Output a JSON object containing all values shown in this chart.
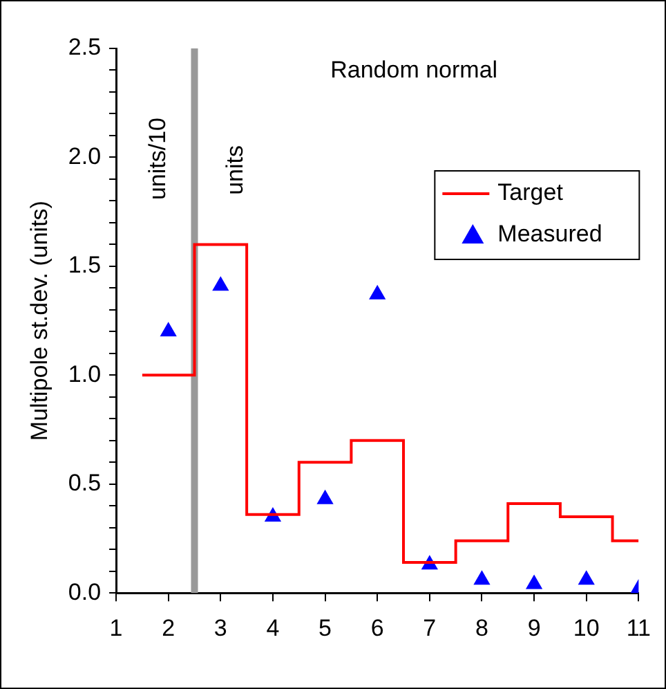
{
  "chart_data": {
    "type": "scatter",
    "title": "Random normal",
    "ylabel": "Multipole st.dev. (units)",
    "annotations": [
      "units/10",
      "units"
    ],
    "xlim": [
      1,
      11
    ],
    "xticks": [
      1,
      2,
      3,
      4,
      5,
      6,
      7,
      8,
      9,
      10,
      11
    ],
    "ylim": [
      0,
      2.5
    ],
    "yticks": [
      {
        "value": 0,
        "label": "0.0"
      },
      {
        "value": 0.1,
        "label": null
      },
      {
        "value": 0.2,
        "label": null
      },
      {
        "value": 0.3,
        "label": null
      },
      {
        "value": 0.4,
        "label": null
      },
      {
        "value": 0.5,
        "label": "0.5"
      },
      {
        "value": 0.6,
        "label": null
      },
      {
        "value": 0.7,
        "label": null
      },
      {
        "value": 0.8,
        "label": null
      },
      {
        "value": 0.9,
        "label": null
      },
      {
        "value": 1,
        "label": "1.0"
      },
      {
        "value": 1.1,
        "label": null
      },
      {
        "value": 1.2,
        "label": null
      },
      {
        "value": 1.3,
        "label": null
      },
      {
        "value": 1.4,
        "label": null
      },
      {
        "value": 1.5,
        "label": "1.5"
      },
      {
        "value": 1.6,
        "label": null
      },
      {
        "value": 1.7,
        "label": null
      },
      {
        "value": 1.8,
        "label": null
      },
      {
        "value": 1.9,
        "label": null
      },
      {
        "value": 2,
        "label": "2.0"
      },
      {
        "value": 2.1,
        "label": null
      },
      {
        "value": 2.2,
        "label": null
      },
      {
        "value": 2.3,
        "label": null
      },
      {
        "value": 2.4,
        "label": null
      },
      {
        "value": 2.5,
        "label": "2.5"
      }
    ],
    "grid": false,
    "legend": "top right",
    "ref_lines": [
      {
        "axis": "x",
        "value": 2.5,
        "label": null,
        "color": "#999999"
      }
    ],
    "series": [
      {
        "name": "Target",
        "type": "step",
        "color": "#ff0000",
        "x": [
          1.5,
          2.5,
          3.5,
          4.5,
          5.5,
          6.5,
          7.5,
          8.5,
          9.5,
          10.5,
          11
        ],
        "values": [
          1.0,
          1.6,
          0.36,
          0.6,
          0.7,
          0.14,
          0.24,
          0.41,
          0.35,
          0.24,
          0.24
        ]
      },
      {
        "name": "Measured",
        "type": "scatter",
        "color": "#0000ff",
        "marker": "triangle",
        "x": [
          2,
          3,
          4,
          5,
          6,
          7,
          8,
          9,
          10,
          11
        ],
        "values": [
          1.2,
          1.41,
          0.35,
          0.43,
          1.37,
          0.13,
          0.06,
          0.04,
          0.06,
          0.02
        ]
      }
    ]
  }
}
